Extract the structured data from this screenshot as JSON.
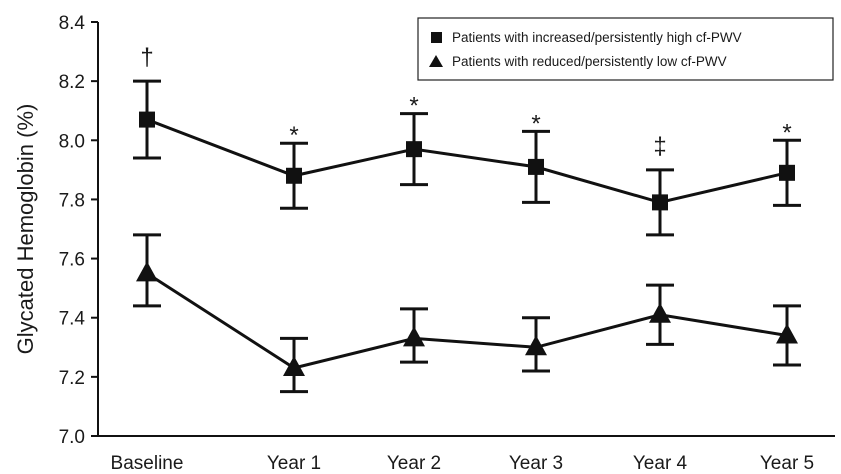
{
  "chart_data": {
    "type": "line",
    "ylabel": "Glycated Hemoglobin (%)",
    "xlabel": "",
    "ylim": [
      7.0,
      8.4
    ],
    "yticks": [
      "7.0",
      "7.2",
      "7.4",
      "7.6",
      "7.8",
      "8.0",
      "8.2",
      "8.4"
    ],
    "categories": [
      "Baseline",
      "Year 1",
      "Year 2",
      "Year 3",
      "Year 4",
      "Year 5"
    ],
    "series": [
      {
        "name": "Patients with increased/persistently high cf-PWV",
        "marker": "square",
        "values": [
          8.07,
          7.88,
          7.97,
          7.91,
          7.79,
          7.89
        ],
        "err_low": [
          7.94,
          7.77,
          7.85,
          7.79,
          7.68,
          7.78
        ],
        "err_high": [
          8.2,
          7.99,
          8.09,
          8.03,
          7.9,
          8.0
        ]
      },
      {
        "name": "Patients with reduced/persistently low cf-PWV",
        "marker": "triangle",
        "values": [
          7.55,
          7.23,
          7.33,
          7.3,
          7.41,
          7.34
        ],
        "err_low": [
          7.44,
          7.15,
          7.25,
          7.22,
          7.31,
          7.24
        ],
        "err_high": [
          7.68,
          7.33,
          7.43,
          7.4,
          7.51,
          7.44
        ]
      }
    ],
    "annotations": [
      "†",
      "*",
      "*",
      "*",
      "‡",
      "*"
    ],
    "legend_position": "top-right",
    "grid": false,
    "color": "#111111"
  }
}
